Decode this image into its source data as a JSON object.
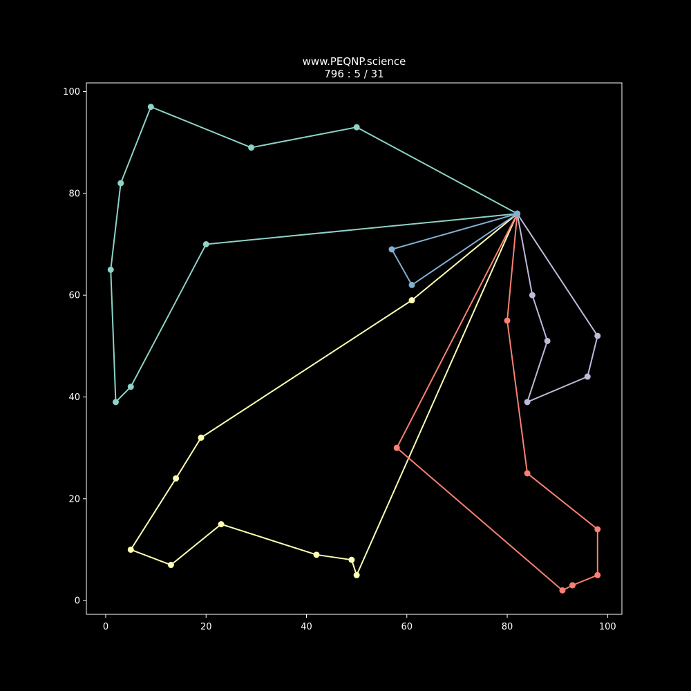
{
  "chart_data": {
    "type": "line",
    "title": "www.PEQNP.science",
    "subtitle": "796 : 5 / 31",
    "xlabel": "",
    "ylabel": "",
    "xlim": [
      -3.85,
      102.85
    ],
    "ylim": [
      -2.7,
      101.7
    ],
    "xticks": [
      0,
      20,
      40,
      60,
      80,
      100
    ],
    "yticks": [
      0,
      20,
      40,
      60,
      80,
      100
    ],
    "grid": false,
    "background": "#000000",
    "axis_color": "#ffffff",
    "series": [
      {
        "color": "#8dd3c7",
        "points": [
          [
            82,
            76
          ],
          [
            20,
            70
          ],
          [
            5,
            42
          ],
          [
            2,
            39
          ],
          [
            1,
            65
          ],
          [
            3,
            82
          ],
          [
            9,
            97
          ],
          [
            29,
            89
          ],
          [
            50,
            93
          ],
          [
            82,
            76
          ]
        ]
      },
      {
        "color": "#ffffb3",
        "points": [
          [
            82,
            76
          ],
          [
            61,
            59
          ],
          [
            19,
            32
          ],
          [
            14,
            24
          ],
          [
            5,
            10
          ],
          [
            13,
            7
          ],
          [
            23,
            15
          ],
          [
            42,
            9
          ],
          [
            49,
            8
          ],
          [
            50,
            5
          ],
          [
            82,
            76
          ]
        ]
      },
      {
        "color": "#bebada",
        "points": [
          [
            82,
            76
          ],
          [
            98,
            52
          ],
          [
            96,
            44
          ],
          [
            84,
            39
          ],
          [
            88,
            51
          ],
          [
            85,
            60
          ],
          [
            82,
            76
          ]
        ]
      },
      {
        "color": "#fb8072",
        "points": [
          [
            82,
            76
          ],
          [
            80,
            55
          ],
          [
            84,
            25
          ],
          [
            98,
            14
          ],
          [
            98,
            5
          ],
          [
            93,
            3
          ],
          [
            91,
            2
          ],
          [
            58,
            30
          ],
          [
            82,
            76
          ]
        ]
      },
      {
        "color": "#80b1d3",
        "points": [
          [
            82,
            76
          ],
          [
            57,
            69
          ],
          [
            61,
            62
          ],
          [
            82,
            76
          ]
        ]
      }
    ]
  }
}
